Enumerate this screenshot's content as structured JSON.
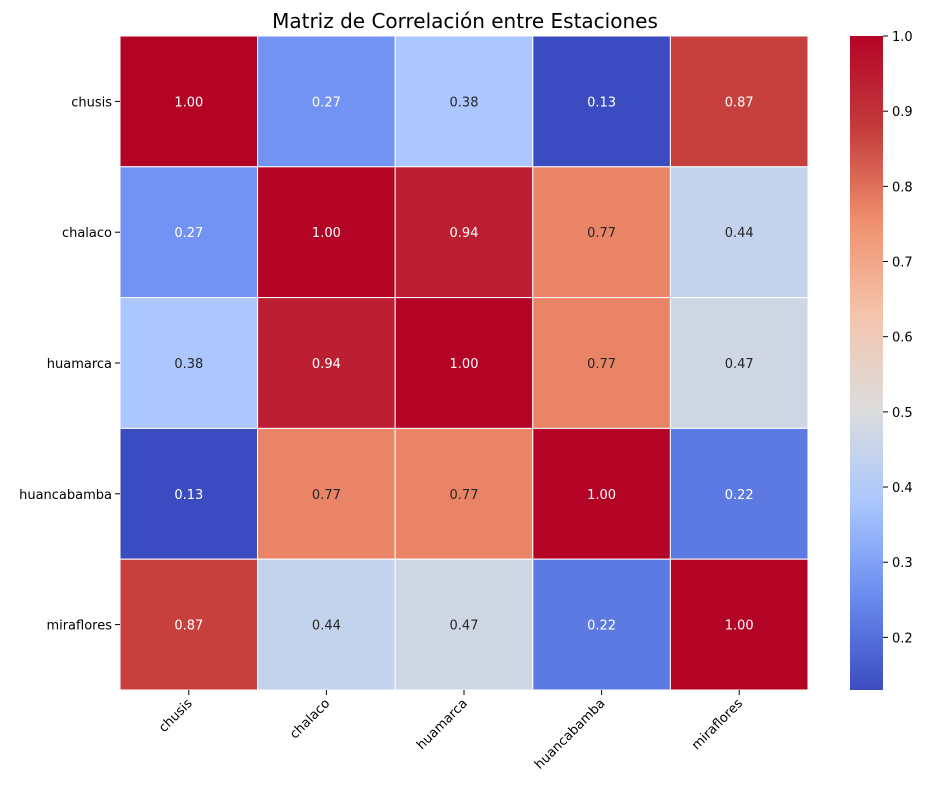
{
  "chart_data": {
    "type": "heatmap",
    "title": "Matriz de Correlación entre Estaciones",
    "xlabel": "",
    "ylabel": "",
    "x_categories": [
      "chusis",
      "chalaco",
      "huamarca",
      "huancabamba",
      "miraflores"
    ],
    "y_categories": [
      "chusis",
      "chalaco",
      "huamarca",
      "huancabamba",
      "miraflores"
    ],
    "values": [
      [
        1.0,
        0.27,
        0.38,
        0.13,
        0.87
      ],
      [
        0.27,
        1.0,
        0.94,
        0.77,
        0.44
      ],
      [
        0.38,
        0.94,
        1.0,
        0.77,
        0.47
      ],
      [
        0.13,
        0.77,
        0.77,
        1.0,
        0.22
      ],
      [
        0.87,
        0.44,
        0.47,
        0.22,
        1.0
      ]
    ],
    "value_format": "0.00",
    "colormap": "coolwarm",
    "colorbar": {
      "range": [
        0.13,
        1.0
      ],
      "ticks": [
        "0.2",
        "0.3",
        "0.4",
        "0.5",
        "0.6",
        "0.7",
        "0.8",
        "0.9",
        "1.0"
      ],
      "colors": [
        "#3b4cc0",
        "#6a8bef",
        "#aac7fd",
        "#dcdddd",
        "#f4c5ad",
        "#f0916f",
        "#c43c3c",
        "#b40426"
      ]
    },
    "x_tick_rotation_deg": 45,
    "grid": true,
    "legend": "colorbar-right"
  }
}
